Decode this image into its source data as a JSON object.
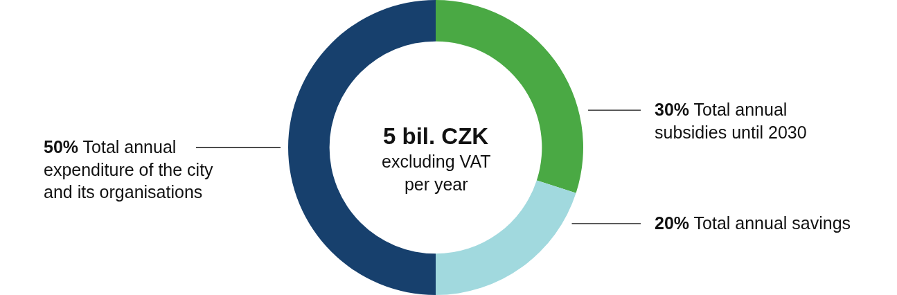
{
  "chart_data": {
    "type": "donut",
    "title": "5 bil. CZK",
    "subtitle": "excluding VAT per year",
    "categories": [
      "Total annual subsidies until 2030",
      "Total annual savings",
      "Total annual expenditure of the city and its organisations"
    ],
    "values": [
      30,
      20,
      50
    ],
    "colors": [
      "#4aa944",
      "#a1d9de",
      "#17406d"
    ],
    "value_labels": [
      "30%",
      "20%",
      "50%"
    ]
  }
}
